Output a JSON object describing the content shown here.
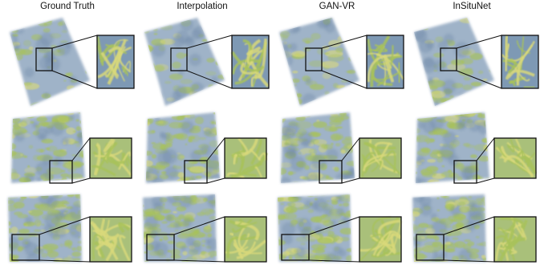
{
  "figure": {
    "columns": [
      {
        "title": "Ground Truth"
      },
      {
        "title": "Interpolation"
      },
      {
        "title": "GAN-VR"
      },
      {
        "title": "InSituNet"
      }
    ],
    "rows": 3,
    "colors": {
      "volume_blue": "#8fa6bf",
      "volume_green": "#a8c25a",
      "volume_yellow": "#d9d97a",
      "frame": "#111111"
    }
  }
}
